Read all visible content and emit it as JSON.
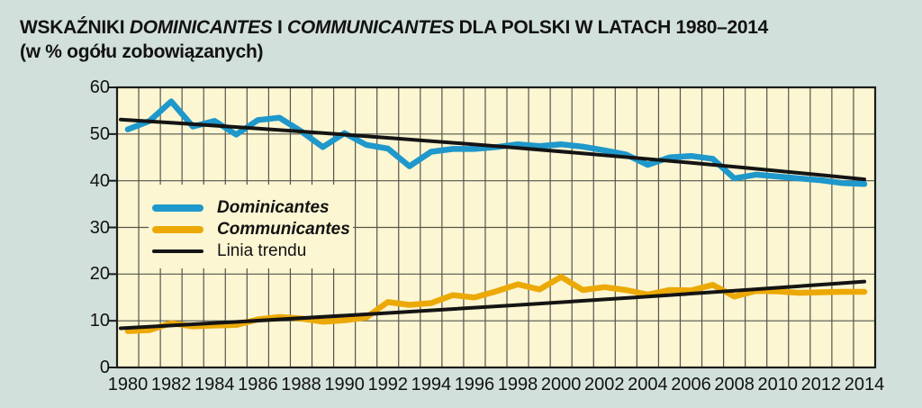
{
  "header": {
    "title_parts": [
      {
        "text": "WSKAŹNIKI ",
        "italic": false
      },
      {
        "text": "DOMINICANTES",
        "italic": true
      },
      {
        "text": " I ",
        "italic": false
      },
      {
        "text": "COMMUNICANTES",
        "italic": true
      },
      {
        "text": " DLA POLSKI W LATACH 1980–2014",
        "italic": false
      }
    ],
    "subtitle": "(w % ogółu zobowiązanych)"
  },
  "chart_data": {
    "type": "line",
    "title": "WSKAŹNIKI DOMINICANTES I COMMUNICANTES DLA POLSKI W LATACH 1980–2014 (w % ogółu zobowiązanych)",
    "xlabel": "",
    "ylabel": "% ogółu zobowiązanych",
    "ylim": [
      0,
      60
    ],
    "grid": true,
    "legend_position": "inside-left",
    "x": [
      1980,
      1981,
      1982,
      1983,
      1984,
      1985,
      1986,
      1987,
      1988,
      1989,
      1990,
      1991,
      1992,
      1993,
      1994,
      1995,
      1996,
      1997,
      1998,
      1999,
      2000,
      2001,
      2002,
      2003,
      2004,
      2005,
      2006,
      2007,
      2008,
      2009,
      2010,
      2011,
      2012,
      2013,
      2014
    ],
    "series": [
      {
        "name": "Dominicantes",
        "color": "#1f98cb",
        "values": [
          51.0,
          52.8,
          57.0,
          51.6,
          52.8,
          49.9,
          53.0,
          53.5,
          50.6,
          47.2,
          50.2,
          47.7,
          46.9,
          43.1,
          46.2,
          46.8,
          46.8,
          47.2,
          47.8,
          47.4,
          47.8,
          47.3,
          46.5,
          45.6,
          43.4,
          45.0,
          45.3,
          44.7,
          40.5,
          41.3,
          40.9,
          40.5,
          40.1,
          39.5,
          39.3
        ]
      },
      {
        "name": "Communicantes",
        "color": "#eca906",
        "values": [
          7.8,
          8.0,
          9.5,
          8.8,
          9.0,
          9.1,
          10.3,
          10.8,
          10.5,
          9.8,
          10.1,
          10.7,
          14.0,
          13.4,
          13.8,
          15.5,
          15.0,
          16.3,
          17.8,
          16.7,
          19.4,
          16.6,
          17.2,
          16.6,
          15.6,
          16.6,
          16.5,
          17.7,
          15.2,
          16.4,
          16.3,
          16.0,
          16.1,
          16.2,
          16.2
        ]
      }
    ],
    "trend_lines": [
      {
        "name": "Linia trendu (Dominicantes)",
        "color": "#141414",
        "points": [
          [
            1980,
            53.1
          ],
          [
            1997,
            47.4
          ],
          [
            2014,
            40.3
          ]
        ]
      },
      {
        "name": "Linia trendu (Communicantes)",
        "color": "#141414",
        "points": [
          [
            1980,
            8.4
          ],
          [
            1997,
            13.1
          ],
          [
            2014,
            18.4
          ]
        ]
      }
    ],
    "legend": [
      {
        "label": "Dominicantes",
        "swatch_color": "#1f98cb",
        "swatch_style": "thick",
        "bold_italic": true
      },
      {
        "label": "Communicantes",
        "swatch_color": "#eca906",
        "swatch_style": "thick",
        "bold_italic": true
      },
      {
        "label": "Linia trendu",
        "swatch_color": "#141414",
        "swatch_style": "thin",
        "bold_italic": false
      }
    ],
    "y_ticks": [
      0,
      10,
      20,
      30,
      40,
      50,
      60
    ],
    "x_tick_labels": [
      "1980",
      "1982",
      "1984",
      "1986",
      "1988",
      "1990",
      "1992",
      "1994",
      "1996",
      "1998",
      "2000",
      "2002",
      "2004",
      "2006",
      "2008",
      "2010",
      "2012",
      "2014"
    ],
    "colors": {
      "page_bg": "#d2e0dc",
      "plot_bg": "#fcf6d2",
      "grid": "#55554d",
      "border": "#1c1c1c",
      "text": "#121212"
    }
  }
}
